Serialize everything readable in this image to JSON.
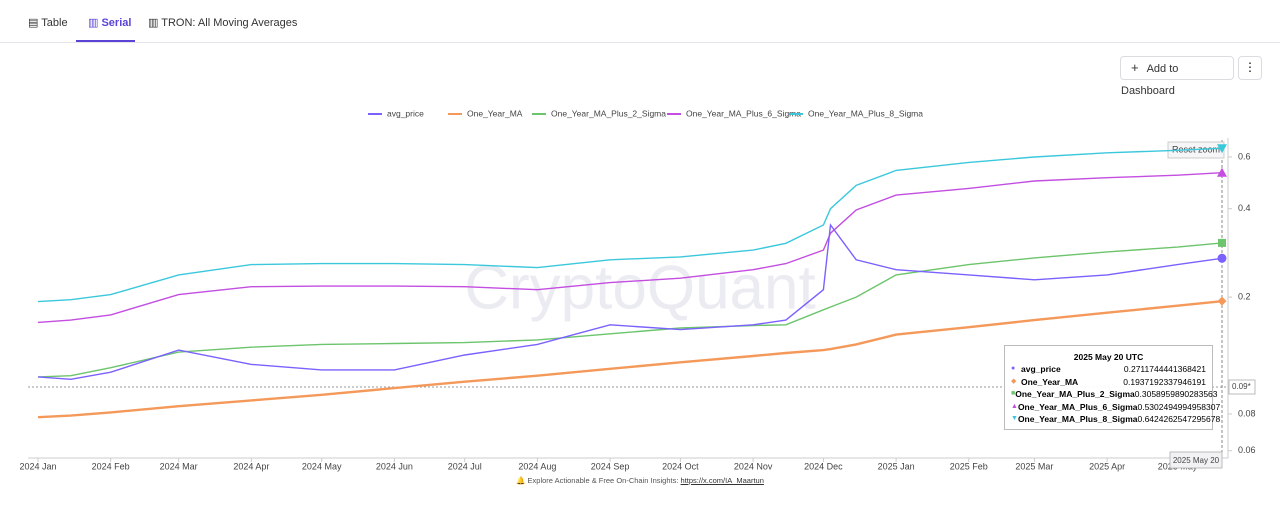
{
  "tabs": [
    "Table",
    "Serial",
    "TRON: All Moving Averages"
  ],
  "button": "Add to Dashboard",
  "chart_data": {
    "type": "line",
    "watermark": "CryptoQuant",
    "reset_zoom": "Reset zoom",
    "log_y": true,
    "grid": false,
    "legend": "top",
    "x": [
      "2024-01-01",
      "2024-01-15",
      "2024-02-01",
      "2024-03-01",
      "2024-04-01",
      "2024-05-01",
      "2024-06-01",
      "2024-07-01",
      "2024-08-01",
      "2024-09-01",
      "2024-10-01",
      "2024-11-01",
      "2024-11-15",
      "2024-12-01",
      "2024-12-04",
      "2024-12-15",
      "2025-01-01",
      "2025-02-01",
      "2025-03-01",
      "2025-04-01",
      "2025-05-01",
      "2025-05-20"
    ],
    "xlim": [
      "2024-01-01",
      "2025-05-20"
    ],
    "xticks": [
      {
        "value": "2024-01-01",
        "label": "2024 Jan"
      },
      {
        "value": "2024-02-01",
        "label": "2024 Feb"
      },
      {
        "value": "2024-03-01",
        "label": "2024 Mar"
      },
      {
        "value": "2024-04-01",
        "label": "2024 Apr"
      },
      {
        "value": "2024-05-01",
        "label": "2024 May"
      },
      {
        "value": "2024-06-01",
        "label": "2024 Jun"
      },
      {
        "value": "2024-07-01",
        "label": "2024 Jul"
      },
      {
        "value": "2024-08-01",
        "label": "2024 Aug"
      },
      {
        "value": "2024-09-01",
        "label": "2024 Sep"
      },
      {
        "value": "2024-10-01",
        "label": "2024 Oct"
      },
      {
        "value": "2024-11-01",
        "label": "2024 Nov"
      },
      {
        "value": "2024-12-01",
        "label": "2024 Dec"
      },
      {
        "value": "2025-01-01",
        "label": "2025 Jan"
      },
      {
        "value": "2025-02-01",
        "label": "2025 Feb"
      },
      {
        "value": "2025-03-01",
        "label": "2025 Mar"
      },
      {
        "value": "2025-04-01",
        "label": "2025 Apr"
      },
      {
        "value": "2025-05-01",
        "label": "2025 May"
      }
    ],
    "ylim": [
      0.058,
      0.68
    ],
    "yticks": [
      0.06,
      0.08,
      0.2,
      0.4,
      0.6
    ],
    "y_cursor": {
      "value": 0.099,
      "label": "0.09*"
    },
    "x_cursor_label": "2025 May 20",
    "tooltip_title": "2025 May 20 UTC",
    "series": [
      {
        "name": "avg_price",
        "color": "#7b61ff",
        "values": [
          0.107,
          0.105,
          0.111,
          0.132,
          0.118,
          0.113,
          0.113,
          0.127,
          0.138,
          0.161,
          0.155,
          0.161,
          0.167,
          0.212,
          0.352,
          0.268,
          0.248,
          0.238,
          0.229,
          0.238,
          0.258,
          0.2711744441368421
        ]
      },
      {
        "name": "One_Year_MA",
        "color": "#f4995a",
        "values": [
          0.078,
          0.079,
          0.081,
          0.085,
          0.089,
          0.093,
          0.098,
          0.103,
          0.108,
          0.114,
          0.12,
          0.126,
          0.129,
          0.132,
          0.133,
          0.138,
          0.149,
          0.158,
          0.167,
          0.177,
          0.187,
          0.1937192337946191
        ]
      },
      {
        "name": "One_Year_MA_Plus_2_Sigma",
        "color": "#6cc46c",
        "values": [
          0.107,
          0.108,
          0.115,
          0.13,
          0.135,
          0.138,
          0.139,
          0.14,
          0.143,
          0.15,
          0.157,
          0.16,
          0.161,
          0.181,
          0.185,
          0.2,
          0.238,
          0.258,
          0.272,
          0.285,
          0.296,
          0.3058959890283563
        ]
      },
      {
        "name": "One_Year_MA_Plus_6_Sigma",
        "color": "#c34ee0",
        "values": [
          0.164,
          0.167,
          0.174,
          0.204,
          0.217,
          0.218,
          0.218,
          0.217,
          0.212,
          0.224,
          0.232,
          0.248,
          0.26,
          0.289,
          0.33,
          0.396,
          0.445,
          0.469,
          0.497,
          0.51,
          0.52,
          0.5302494994958307
        ]
      },
      {
        "name": "One_Year_MA_Plus_8_Sigma",
        "color": "#3cc8dc",
        "values": [
          0.193,
          0.196,
          0.204,
          0.238,
          0.258,
          0.26,
          0.26,
          0.258,
          0.252,
          0.268,
          0.274,
          0.289,
          0.305,
          0.352,
          0.4,
          0.48,
          0.54,
          0.575,
          0.6,
          0.62,
          0.632,
          0.6424262547295678
        ]
      }
    ]
  },
  "footer": {
    "text": "Explore Actionable & Free On-Chain Insights:",
    "link": "https://x.com/IA_Maartun"
  }
}
